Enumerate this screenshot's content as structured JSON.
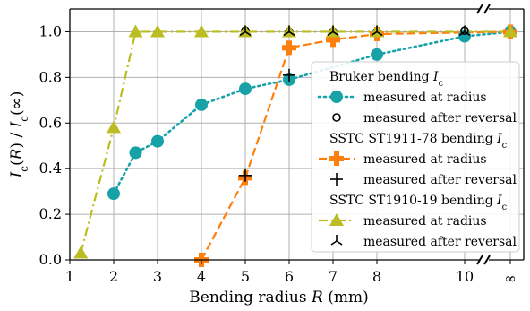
{
  "chart_data": {
    "type": "line",
    "xlabel": "Bending radius R (mm)",
    "ylabel": "I_c(R) / I_c(∞)",
    "x_ticks": [
      "1",
      "2",
      "3",
      "4",
      "5",
      "6",
      "7",
      "8",
      "10",
      "∞"
    ],
    "y_ticks": [
      "0.0",
      "0.2",
      "0.4",
      "0.6",
      "0.8",
      "1.0"
    ],
    "ylim": [
      0,
      1.1
    ],
    "grid": true,
    "x_axis_break": "between 10 and ∞",
    "legend_placement": "right",
    "groups": [
      {
        "title": "Bruker bending I_c",
        "color": "#17A2A8",
        "series": [
          {
            "name": "measured at radius",
            "style": "dotted",
            "marker": "circle-filled",
            "x": [
              "2",
              "2.5",
              "3",
              "4",
              "5",
              "6",
              "8",
              "10",
              "∞"
            ],
            "y": [
              0.29,
              0.47,
              0.52,
              0.68,
              0.75,
              0.79,
              0.9,
              0.98,
              1.0
            ]
          },
          {
            "name": "measured after reversal",
            "marker": "circle-open",
            "x": [
              "5",
              "6",
              "7",
              "8",
              "10"
            ],
            "y": [
              1.005,
              1.0,
              1.0,
              1.0,
              1.005
            ]
          }
        ]
      },
      {
        "title": "SSTC ST1911-78 bending I_c",
        "color": "#FF7F0E",
        "series": [
          {
            "name": "measured at radius",
            "style": "dashed",
            "marker": "plus-thick",
            "x": [
              "4",
              "5",
              "6",
              "7",
              "8",
              "∞"
            ],
            "y": [
              0.0,
              0.36,
              0.93,
              0.965,
              0.99,
              1.0
            ]
          },
          {
            "name": "measured after reversal",
            "marker": "plus",
            "x": [
              "5",
              "6"
            ],
            "y": [
              0.37,
              0.81
            ]
          }
        ]
      },
      {
        "title": "SSTC ST1910-19 bending I_c",
        "color": "#BCBD22",
        "series": [
          {
            "name": "measured at radius",
            "style": "dashdot",
            "marker": "triangle",
            "x": [
              "1.25",
              "2",
              "2.5",
              "3",
              "4",
              "5",
              "6",
              "7",
              "8",
              "∞"
            ],
            "y": [
              0.03,
              0.58,
              1.0,
              1.0,
              1.0,
              1.0,
              1.0,
              1.0,
              1.0,
              1.0
            ]
          },
          {
            "name": "measured after reversal",
            "marker": "tri-down",
            "x": [
              "5",
              "6",
              "7",
              "8",
              "10"
            ],
            "y": [
              1.0,
              1.0,
              1.0,
              1.0,
              1.0
            ]
          }
        ]
      }
    ]
  }
}
